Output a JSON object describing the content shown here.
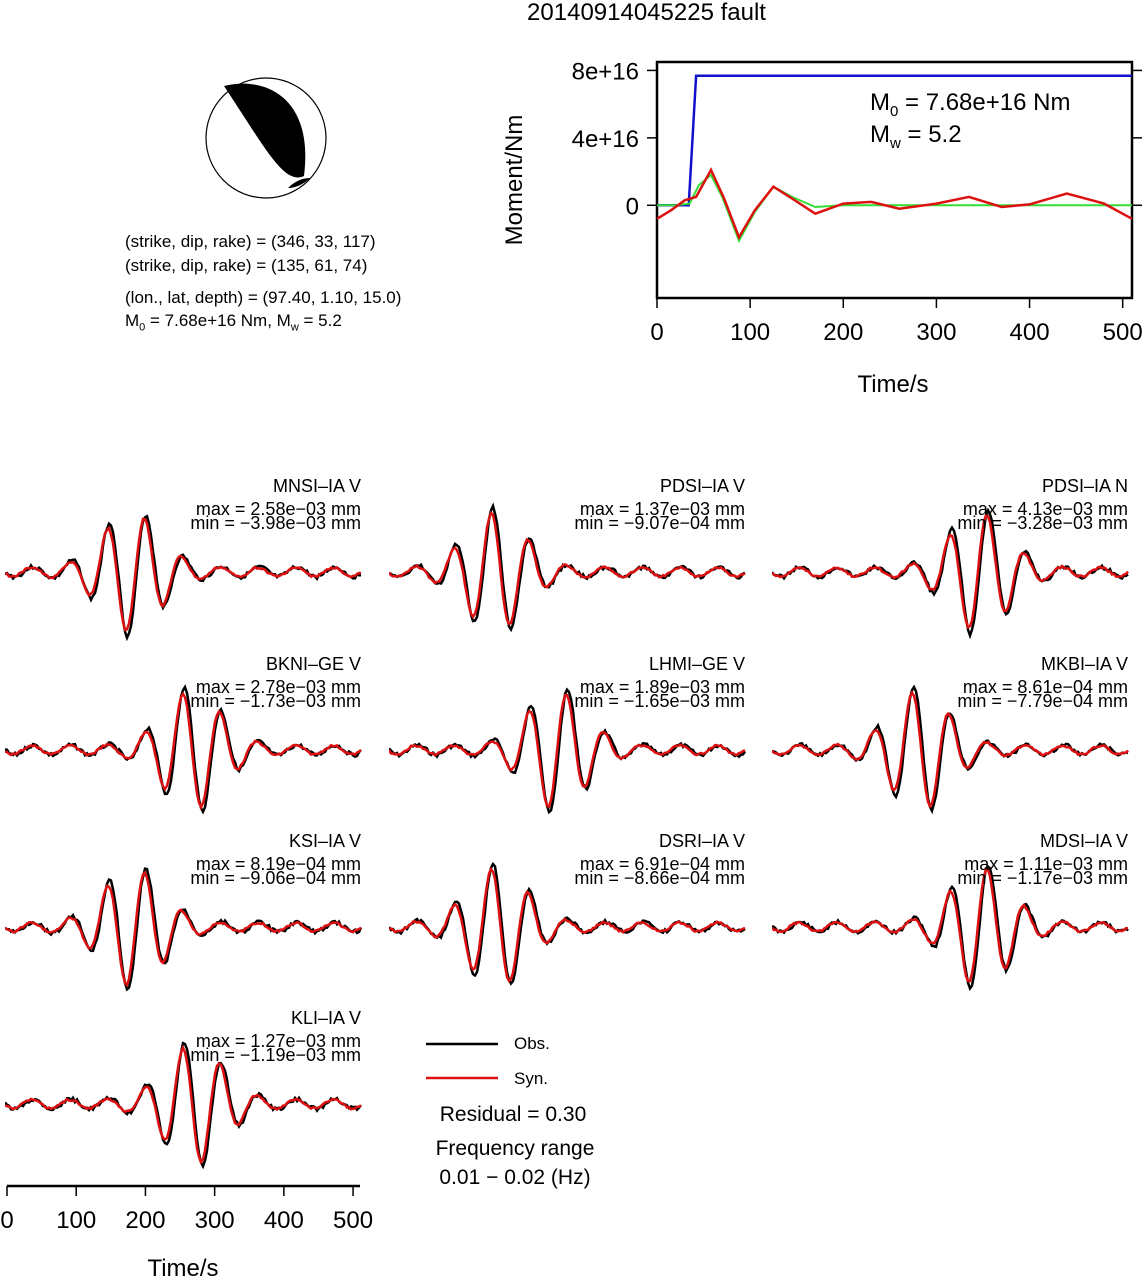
{
  "title": "20140914045225 fault",
  "focal": {
    "plane1": "(strike, dip, rake) = (346, 33, 117)",
    "plane2": "(strike, dip, rake) = (135, 61, 74)",
    "location": "(lon., lat, depth) = (97.40, 1.10, 15.0)",
    "moment_prefix": "M",
    "moment_sub": "0",
    "moment_mid": " = 7.68e+16 Nm, M",
    "mw_sub": "w",
    "mw_suffix": " = 5.2"
  },
  "moment_panel": {
    "m0_text": "M",
    "m0_sub": "0",
    "m0_value": " = 7.68e+16 Nm",
    "mw_text": "M",
    "mw_sub": "w",
    "mw_value": " = 5.2",
    "ylabel": "Moment/Nm",
    "xlabel": "Time/s",
    "yticks": [
      "0",
      "4e+16",
      "8e+16"
    ],
    "xticks": [
      "0",
      "100",
      "200",
      "300",
      "400",
      "500"
    ]
  },
  "traces": [
    {
      "name": "MNSI–IA V",
      "max": "max = 2.58e−03 mm",
      "min": "min = −3.98e−03 mm"
    },
    {
      "name": "PDSI–IA V",
      "max": "max = 1.37e−03 mm",
      "min": "min = −9.07e−04 mm"
    },
    {
      "name": "PDSI–IA N",
      "max": "max = 4.13e−03 mm",
      "min": "min = −3.28e−03 mm"
    },
    {
      "name": "BKNI–GE V",
      "max": "max = 2.78e−03 mm",
      "min": "min = −1.73e−03 mm"
    },
    {
      "name": "LHMI–GE V",
      "max": "max = 1.89e−03 mm",
      "min": "min = −1.65e−03 mm"
    },
    {
      "name": "MKBI–IA V",
      "max": "max = 8.61e−04 mm",
      "min": "min = −7.79e−04 mm"
    },
    {
      "name": "KSI–IA V",
      "max": "max = 8.19e−04 mm",
      "min": "min = −9.06e−04 mm"
    },
    {
      "name": "DSRI–IA V",
      "max": "max = 6.91e−04 mm",
      "min": "min = −8.66e−04 mm"
    },
    {
      "name": "MDSI–IA V",
      "max": "max = 1.11e−03 mm",
      "min": "min = −1.17e−03 mm"
    },
    {
      "name": "KLI–IA V",
      "max": "max = 1.27e−03 mm",
      "min": "min = −1.19e−03 mm"
    }
  ],
  "legend": {
    "obs": "Obs.",
    "syn": "Syn."
  },
  "residual": "Residual = 0.30",
  "freq_label": "Frequency range",
  "freq_value": "0.01 − 0.02 (Hz)",
  "bottom_axis": {
    "xlabel": "Time/s",
    "xticks": [
      "0",
      "100",
      "200",
      "300",
      "400",
      "500"
    ]
  },
  "colors": {
    "obs": "#000000",
    "syn": "#dd1111",
    "moment": "#1111cc",
    "stf": "#33dd33"
  },
  "chart_data": [
    {
      "type": "line",
      "title": "",
      "xlabel": "Time/s",
      "ylabel": "Moment/Nm",
      "xlim": [
        0,
        510
      ],
      "ylim": [
        -5.5e+16,
        8.5e+16
      ],
      "series": [
        {
          "x": [
            0,
            34,
            42,
            510
          ],
          "values": [
            0,
            0,
            7.68e+16,
            7.68e+16
          ]
        },
        {
          "x": [
            0,
            20,
            35,
            45,
            58,
            70,
            88,
            105,
            125,
            145,
            170,
            200,
            230,
            260,
            300,
            340,
            380,
            420,
            460,
            510
          ],
          "values": [
            0,
            0,
            1000000000000000.0,
            1.2e+16,
            1.8e+16,
            5000000000000000.0,
            -2.1e+16,
            -4000000000000000.0,
            1.1e+16,
            5000000000000000.0,
            -1000000000000000.0,
            0,
            0,
            0,
            0,
            0,
            0,
            0,
            0,
            0
          ]
        },
        {
          "x": [
            0,
            15,
            30,
            42,
            58,
            72,
            88,
            105,
            125,
            145,
            170,
            200,
            230,
            260,
            300,
            335,
            370,
            400,
            440,
            480,
            510
          ],
          "values": [
            -8000000000000000.0,
            -3000000000000000.0,
            3000000000000000.0,
            5000000000000000.0,
            2.1e+16,
            4000000000000000.0,
            -1.9e+16,
            -3000000000000000.0,
            1.1e+16,
            4000000000000000.0,
            -5000000000000000.0,
            1000000000000000.0,
            2000000000000000.0,
            -2000000000000000.0,
            1000000000000000.0,
            5000000000000000.0,
            -1000000000000000.0,
            500000000000000.0,
            7000000000000000.0,
            1000000000000000.0,
            -8000000000000000.0
          ]
        }
      ]
    }
  ]
}
